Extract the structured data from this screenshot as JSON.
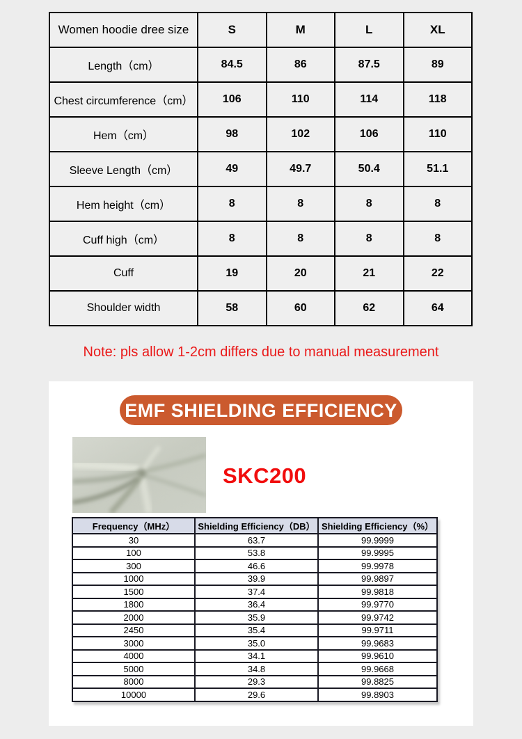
{
  "size_table": {
    "header": [
      "Women hoodie dree size",
      "S",
      "M",
      "L",
      "XL"
    ],
    "rows": [
      [
        "Length（cm）",
        "84.5",
        "86",
        "87.5",
        "89"
      ],
      [
        "Chest circumference（cm）",
        "106",
        "110",
        "114",
        "118"
      ],
      [
        "Hem（cm）",
        "98",
        "102",
        "106",
        "110"
      ],
      [
        "Sleeve Length（cm）",
        "49",
        "49.7",
        "50.4",
        "51.1"
      ],
      [
        "Hem height（cm）",
        "8",
        "8",
        "8",
        "8"
      ],
      [
        "Cuff high（cm）",
        "8",
        "8",
        "8",
        "8"
      ],
      [
        "Cuff",
        "19",
        "20",
        "21",
        "22"
      ],
      [
        "Shoulder width",
        "58",
        "60",
        "62",
        "64"
      ]
    ]
  },
  "note": "Note: pls allow 1-2cm differs due to manual measurement",
  "emf_section": {
    "banner_title": "EMF SHIELDING EFFICIENCY",
    "product_code": "SKC200",
    "fabric_image": "gray-knit-fabric-swatch",
    "table": {
      "header": [
        "Frequency（MHz）",
        "Shielding Efficiency（DB）",
        "Shielding Efficiency（%）"
      ],
      "rows": [
        [
          "30",
          "63.7",
          "99.9999"
        ],
        [
          "100",
          "53.8",
          "99.9995"
        ],
        [
          "300",
          "46.6",
          "99.9978"
        ],
        [
          "1000",
          "39.9",
          "99.9897"
        ],
        [
          "1500",
          "37.4",
          "99.9818"
        ],
        [
          "1800",
          "36.4",
          "99.9770"
        ],
        [
          "2000",
          "35.9",
          "99.9742"
        ],
        [
          "2450",
          "35.4",
          "99.9711"
        ],
        [
          "3000",
          "35.0",
          "99.9683"
        ],
        [
          "4000",
          "34.1",
          "99.9610"
        ],
        [
          "5000",
          "34.8",
          "99.9668"
        ],
        [
          "8000",
          "29.3",
          "99.8825"
        ],
        [
          "10000",
          "29.6",
          "99.8903"
        ]
      ]
    }
  },
  "colors": {
    "page_bg": "#ededed",
    "panel_bg": "#ffffff",
    "banner_bg": "#cb5a2e",
    "note_red": "#ea1a1a",
    "code_red": "#f10d0d",
    "emf_header_bg": "#d7dbe8"
  }
}
